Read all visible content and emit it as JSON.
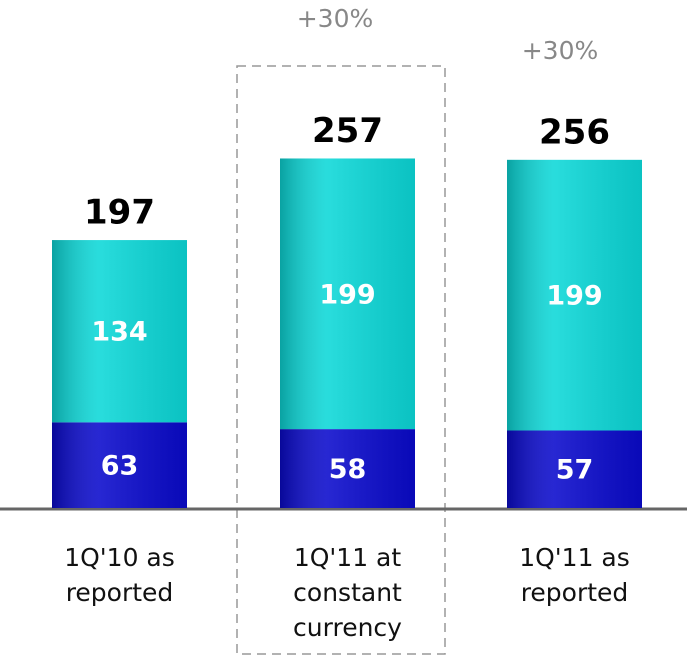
{
  "chart_data": {
    "type": "bar",
    "stacked": true,
    "categories": [
      "1Q'10 as reported",
      "1Q'11 at constant currency",
      "1Q'11 as reported"
    ],
    "series": [
      {
        "color": "#0a0acc",
        "values": [
          63,
          58,
          57
        ]
      },
      {
        "color": "#0cd8d8",
        "values": [
          134,
          199,
          199
        ]
      }
    ],
    "totals": [
      197,
      257,
      256
    ],
    "annotations": [
      {
        "text": "+30%"
      },
      {
        "text": "+30%"
      }
    ]
  }
}
